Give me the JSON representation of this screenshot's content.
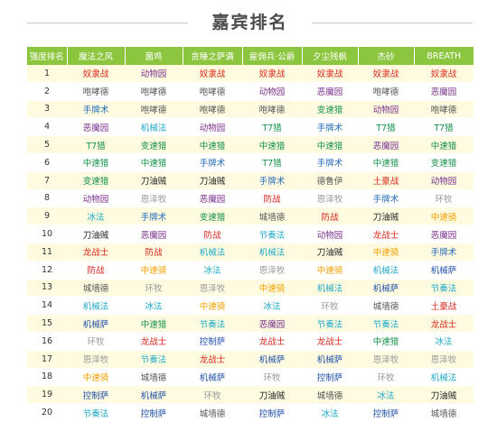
{
  "title": "嘉宾排名",
  "columns": [
    "强度排名",
    "魔法之风",
    "菌鸡",
    "贪睡之萨满",
    "雇佣兵·公爵",
    "夕尘残枫",
    "杰砂",
    "BREATH"
  ],
  "color_legend": {
    "red": "#d9261c",
    "purple": "#7a2f8c",
    "dgray": "#555555",
    "blue": "#2a6fb8",
    "green": "#16924a",
    "black": "#222222",
    "orange": "#f5a100",
    "lgray": "#999999",
    "cyan": "#1ca8c8",
    "dblue": "#1f4fa8"
  },
  "rows": [
    {
      "rank": "1",
      "cells": [
        "奴隶战",
        "动物园",
        "奴隶战",
        "奴隶战",
        "奴隶战",
        "奴隶战",
        "奴隶战"
      ],
      "colors": [
        "red",
        "purple",
        "red",
        "red",
        "red",
        "red",
        "red"
      ]
    },
    {
      "rank": "2",
      "cells": [
        "咆哮德",
        "咆哮德",
        "咆哮德",
        "动物园",
        "恶魔园",
        "咆哮德",
        "恶魔园"
      ],
      "colors": [
        "dgray",
        "dgray",
        "dgray",
        "purple",
        "purple",
        "dgray",
        "purple"
      ]
    },
    {
      "rank": "3",
      "cells": [
        "手牌术",
        "咆哮德",
        "咆哮德",
        "咆哮德",
        "变速猎",
        "动物园",
        "咆哮德"
      ],
      "colors": [
        "blue",
        "dgray",
        "dgray",
        "dgray",
        "green",
        "purple",
        "dgray"
      ]
    },
    {
      "rank": "4",
      "cells": [
        "恶魔园",
        "机械法",
        "动物园",
        "T7猎",
        "手牌术",
        "T7猎",
        "T7猎"
      ],
      "colors": [
        "purple",
        "cyan",
        "purple",
        "green",
        "blue",
        "green",
        "green"
      ]
    },
    {
      "rank": "5",
      "cells": [
        "T7猎",
        "变速猎",
        "中速猎",
        "中速猎",
        "中速猎",
        "恶魔园",
        "中速猎"
      ],
      "colors": [
        "green",
        "green",
        "green",
        "green",
        "green",
        "purple",
        "green"
      ]
    },
    {
      "rank": "6",
      "cells": [
        "中速猎",
        "中速猎",
        "手牌术",
        "T7猎",
        "手牌术",
        "中速猎",
        "变速猎"
      ],
      "colors": [
        "green",
        "green",
        "blue",
        "green",
        "blue",
        "green",
        "green"
      ]
    },
    {
      "rank": "7",
      "cells": [
        "变速猎",
        "刀油贼",
        "刀油贼",
        "手牌术",
        "德鲁伊",
        "土豪战",
        "动物园"
      ],
      "colors": [
        "green",
        "black",
        "black",
        "blue",
        "dgray",
        "red",
        "purple"
      ]
    },
    {
      "rank": "8",
      "cells": [
        "动物园",
        "恩泽牧",
        "恶魔园",
        "防战",
        "恩泽牧",
        "手牌术",
        "环牧"
      ],
      "colors": [
        "purple",
        "lgray",
        "purple",
        "red",
        "lgray",
        "blue",
        "lgray"
      ]
    },
    {
      "rank": "9",
      "cells": [
        "冰法",
        "手牌术",
        "变速猎",
        "城墙德",
        "防战",
        "刀油贼",
        "中速骑"
      ],
      "colors": [
        "cyan",
        "blue",
        "green",
        "dgray",
        "red",
        "black",
        "orange"
      ]
    },
    {
      "rank": "10",
      "cells": [
        "刀油贼",
        "恶魔园",
        "防战",
        "节奏法",
        "动物园",
        "龙战士",
        "恶魔园"
      ],
      "colors": [
        "black",
        "purple",
        "red",
        "cyan",
        "purple",
        "red",
        "purple"
      ]
    },
    {
      "rank": "11",
      "cells": [
        "龙战士",
        "防战",
        "机械法",
        "机械法",
        "刀油贼",
        "中速骑",
        "手牌术"
      ],
      "colors": [
        "red",
        "red",
        "cyan",
        "cyan",
        "black",
        "orange",
        "blue"
      ]
    },
    {
      "rank": "12",
      "cells": [
        "防战",
        "中速骑",
        "冰法",
        "恩泽牧",
        "中速骑",
        "机械法",
        "机械萨"
      ],
      "colors": [
        "red",
        "orange",
        "cyan",
        "lgray",
        "orange",
        "cyan",
        "dblue"
      ]
    },
    {
      "rank": "13",
      "cells": [
        "城墙德",
        "环牧",
        "恩泽牧",
        "中速骑",
        "机械法",
        "机械萨",
        "节奏法"
      ],
      "colors": [
        "dgray",
        "lgray",
        "lgray",
        "orange",
        "cyan",
        "dblue",
        "cyan"
      ]
    },
    {
      "rank": "14",
      "cells": [
        "机械法",
        "冰法",
        "中速骑",
        "冰法",
        "环牧",
        "城墙德",
        "土豪战"
      ],
      "colors": [
        "cyan",
        "cyan",
        "orange",
        "cyan",
        "lgray",
        "dgray",
        "red"
      ]
    },
    {
      "rank": "15",
      "cells": [
        "机械萨",
        "中速猎",
        "节奏法",
        "恶魔园",
        "节奏法",
        "节奏法",
        "龙战士"
      ],
      "colors": [
        "dblue",
        "green",
        "cyan",
        "purple",
        "cyan",
        "cyan",
        "red"
      ]
    },
    {
      "rank": "16",
      "cells": [
        "环牧",
        "龙战士",
        "控制萨",
        "龙战士",
        "龙战士",
        "中速猎",
        "冰法"
      ],
      "colors": [
        "lgray",
        "red",
        "dblue",
        "red",
        "red",
        "green",
        "cyan"
      ]
    },
    {
      "rank": "17",
      "cells": [
        "恩泽牧",
        "节奏法",
        "龙战士",
        "机械萨",
        "机械萨",
        "恩泽牧",
        "恩泽牧"
      ],
      "colors": [
        "lgray",
        "cyan",
        "red",
        "dblue",
        "dblue",
        "lgray",
        "lgray"
      ]
    },
    {
      "rank": "18",
      "cells": [
        "中速骑",
        "城墙德",
        "机械萨",
        "环牧",
        "控制萨",
        "环牧",
        "机械法"
      ],
      "colors": [
        "orange",
        "dgray",
        "dblue",
        "lgray",
        "dblue",
        "lgray",
        "cyan"
      ]
    },
    {
      "rank": "19",
      "cells": [
        "控制萨",
        "机械萨",
        "环牧",
        "刀油贼",
        "城墙德",
        "冰法",
        "刀油贼"
      ],
      "colors": [
        "dblue",
        "dblue",
        "lgray",
        "black",
        "dgray",
        "cyan",
        "black"
      ]
    },
    {
      "rank": "20",
      "cells": [
        "节奏法",
        "控制萨",
        "城墙德",
        "控制萨",
        "冰法",
        "控制萨",
        "城墙德"
      ],
      "colors": [
        "cyan",
        "dblue",
        "dgray",
        "dblue",
        "cyan",
        "dblue",
        "dgray"
      ]
    }
  ]
}
